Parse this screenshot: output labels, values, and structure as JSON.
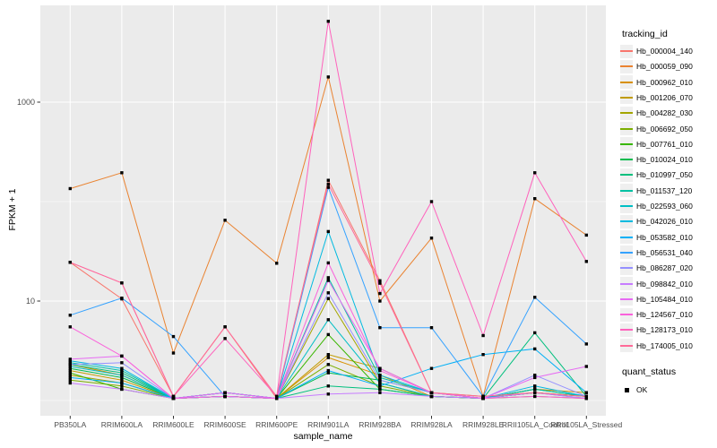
{
  "figure": {
    "y_axis_title": "FPKM + 1",
    "x_axis_title": "sample_name",
    "y_tick_labels": [
      "1000",
      "10"
    ],
    "legend": {
      "tracking_title": "tracking_id",
      "status_title": "quant_status",
      "status_label": "OK"
    },
    "colors": {
      "panel_background": "#EBEBEB",
      "gridline": "#FFFFFF",
      "tick": "#333333",
      "tick_label": "#4D4D4D",
      "point": "#000000"
    }
  },
  "chart_data": {
    "type": "line",
    "title": "",
    "xlabel": "sample_name",
    "ylabel": "FPKM + 1",
    "y_scale": "log10",
    "ylim": [
      0.7,
      9000
    ],
    "y_major_ticks": [
      10,
      1000
    ],
    "y_minor_gridlines": [
      1,
      100
    ],
    "grid": true,
    "legend_position": "right",
    "point_marker": "black-square",
    "quant_status_label": "OK",
    "categories": [
      "PB350LA",
      "RRIM600LA",
      "RRIM600LE",
      "RRIM600SE",
      "RRIM600PE",
      "RRIM901LA",
      "RRIM928BA",
      "RRIM928LA",
      "RRIM928LE",
      "RRII105LA_Control",
      "RRII105LA_Stressed"
    ],
    "series": [
      {
        "name": "Hb_000004_140",
        "color": "#F8766D",
        "values": [
          24.5,
          10.5,
          1.1,
          5.5,
          1.05,
          164,
          16,
          1.2,
          1.05,
          1.2,
          1.1
        ]
      },
      {
        "name": "Hb_000059_090",
        "color": "#EA8331",
        "values": [
          135,
          195,
          3.0,
          65,
          24,
          1790,
          10,
          43,
          1.1,
          107,
          46
        ]
      },
      {
        "name": "Hb_000962_010",
        "color": "#D89000",
        "values": [
          2.3,
          1.8,
          1.05,
          1.1,
          1.05,
          2.7,
          1.8,
          1.1,
          1.05,
          1.3,
          1.2
        ]
      },
      {
        "name": "Hb_001206_070",
        "color": "#C09B00",
        "values": [
          2.0,
          1.6,
          1.05,
          1.1,
          1.05,
          2.9,
          2.1,
          1.2,
          1.1,
          1.2,
          1.1
        ]
      },
      {
        "name": "Hb_004282_030",
        "color": "#A3A500",
        "values": [
          1.8,
          1.5,
          1.05,
          1.2,
          1.05,
          10.6,
          1.5,
          1.1,
          1.05,
          1.2,
          1.1
        ]
      },
      {
        "name": "Hb_006692_050",
        "color": "#7CAE00",
        "values": [
          1.6,
          1.4,
          1.05,
          1.1,
          1.05,
          2.3,
          1.4,
          1.1,
          1.05,
          1.1,
          1.05
        ]
      },
      {
        "name": "Hb_007761_010",
        "color": "#39B600",
        "values": [
          1.9,
          1.3,
          1.05,
          1.1,
          1.05,
          4.6,
          1.3,
          1.1,
          1.05,
          1.2,
          1.1
        ]
      },
      {
        "name": "Hb_010024_010",
        "color": "#00BB4E",
        "values": [
          2.1,
          1.7,
          1.05,
          1.2,
          1.05,
          1.9,
          1.6,
          1.2,
          1.05,
          1.3,
          1.1
        ]
      },
      {
        "name": "Hb_010997_050",
        "color": "#00BF7D",
        "values": [
          2.3,
          1.9,
          1.05,
          1.1,
          1.05,
          1.4,
          1.3,
          1.1,
          1.05,
          4.8,
          1.1
        ]
      },
      {
        "name": "Hb_011537_120",
        "color": "#00C1A3",
        "values": [
          2.4,
          2.0,
          1.05,
          1.2,
          1.05,
          17.2,
          1.7,
          1.2,
          1.05,
          1.3,
          1.1
        ]
      },
      {
        "name": "Hb_022593_060",
        "color": "#00BFC4",
        "values": [
          2.2,
          1.8,
          1.05,
          1.1,
          1.05,
          6.5,
          1.5,
          1.1,
          1.05,
          1.2,
          1.05
        ]
      },
      {
        "name": "Hb_042026_010",
        "color": "#00BAE0",
        "values": [
          2.5,
          2.1,
          1.05,
          1.2,
          1.05,
          50,
          1.8,
          1.2,
          1.05,
          1.4,
          1.1
        ]
      },
      {
        "name": "Hb_053582_010",
        "color": "#00B0F6",
        "values": [
          1.7,
          1.5,
          1.05,
          1.1,
          1.05,
          2.0,
          1.4,
          2.1,
          2.9,
          3.3,
          1.2
        ]
      },
      {
        "name": "Hb_056531_040",
        "color": "#35A2FF",
        "values": [
          7.2,
          10.7,
          4.4,
          1.1,
          1.05,
          139,
          5.4,
          5.4,
          1.1,
          10.9,
          3.7
        ]
      },
      {
        "name": "Hb_086287_020",
        "color": "#9590FF",
        "values": [
          2.3,
          2.4,
          1.05,
          1.2,
          1.05,
          12.1,
          1.6,
          1.2,
          1.05,
          1.8,
          1.1
        ]
      },
      {
        "name": "Hb_098842_010",
        "color": "#C77CFF",
        "values": [
          1.5,
          1.3,
          1.05,
          1.1,
          1.05,
          1.16,
          1.2,
          1.1,
          1.05,
          1.2,
          1.05
        ]
      },
      {
        "name": "Hb_105484_010",
        "color": "#E76BF3",
        "values": [
          2.6,
          2.8,
          1.05,
          1.2,
          1.05,
          16.1,
          2.1,
          1.2,
          1.05,
          1.7,
          2.2
        ]
      },
      {
        "name": "Hb_124567_010",
        "color": "#FA62DB",
        "values": [
          5.5,
          2.8,
          1.05,
          1.1,
          1.05,
          24.2,
          2.0,
          1.2,
          1.05,
          1.1,
          1.05
        ]
      },
      {
        "name": "Hb_128173_010",
        "color": "#FF62BC",
        "values": [
          24.5,
          15.2,
          1.1,
          4.2,
          1.1,
          6500,
          11.9,
          100,
          4.5,
          195,
          25
        ]
      },
      {
        "name": "Hb_174005_010",
        "color": "#FF6A98",
        "values": [
          24.5,
          15.2,
          1.1,
          5.5,
          1.1,
          150,
          15.1,
          1.2,
          1.1,
          1.2,
          1.1
        ]
      }
    ]
  }
}
